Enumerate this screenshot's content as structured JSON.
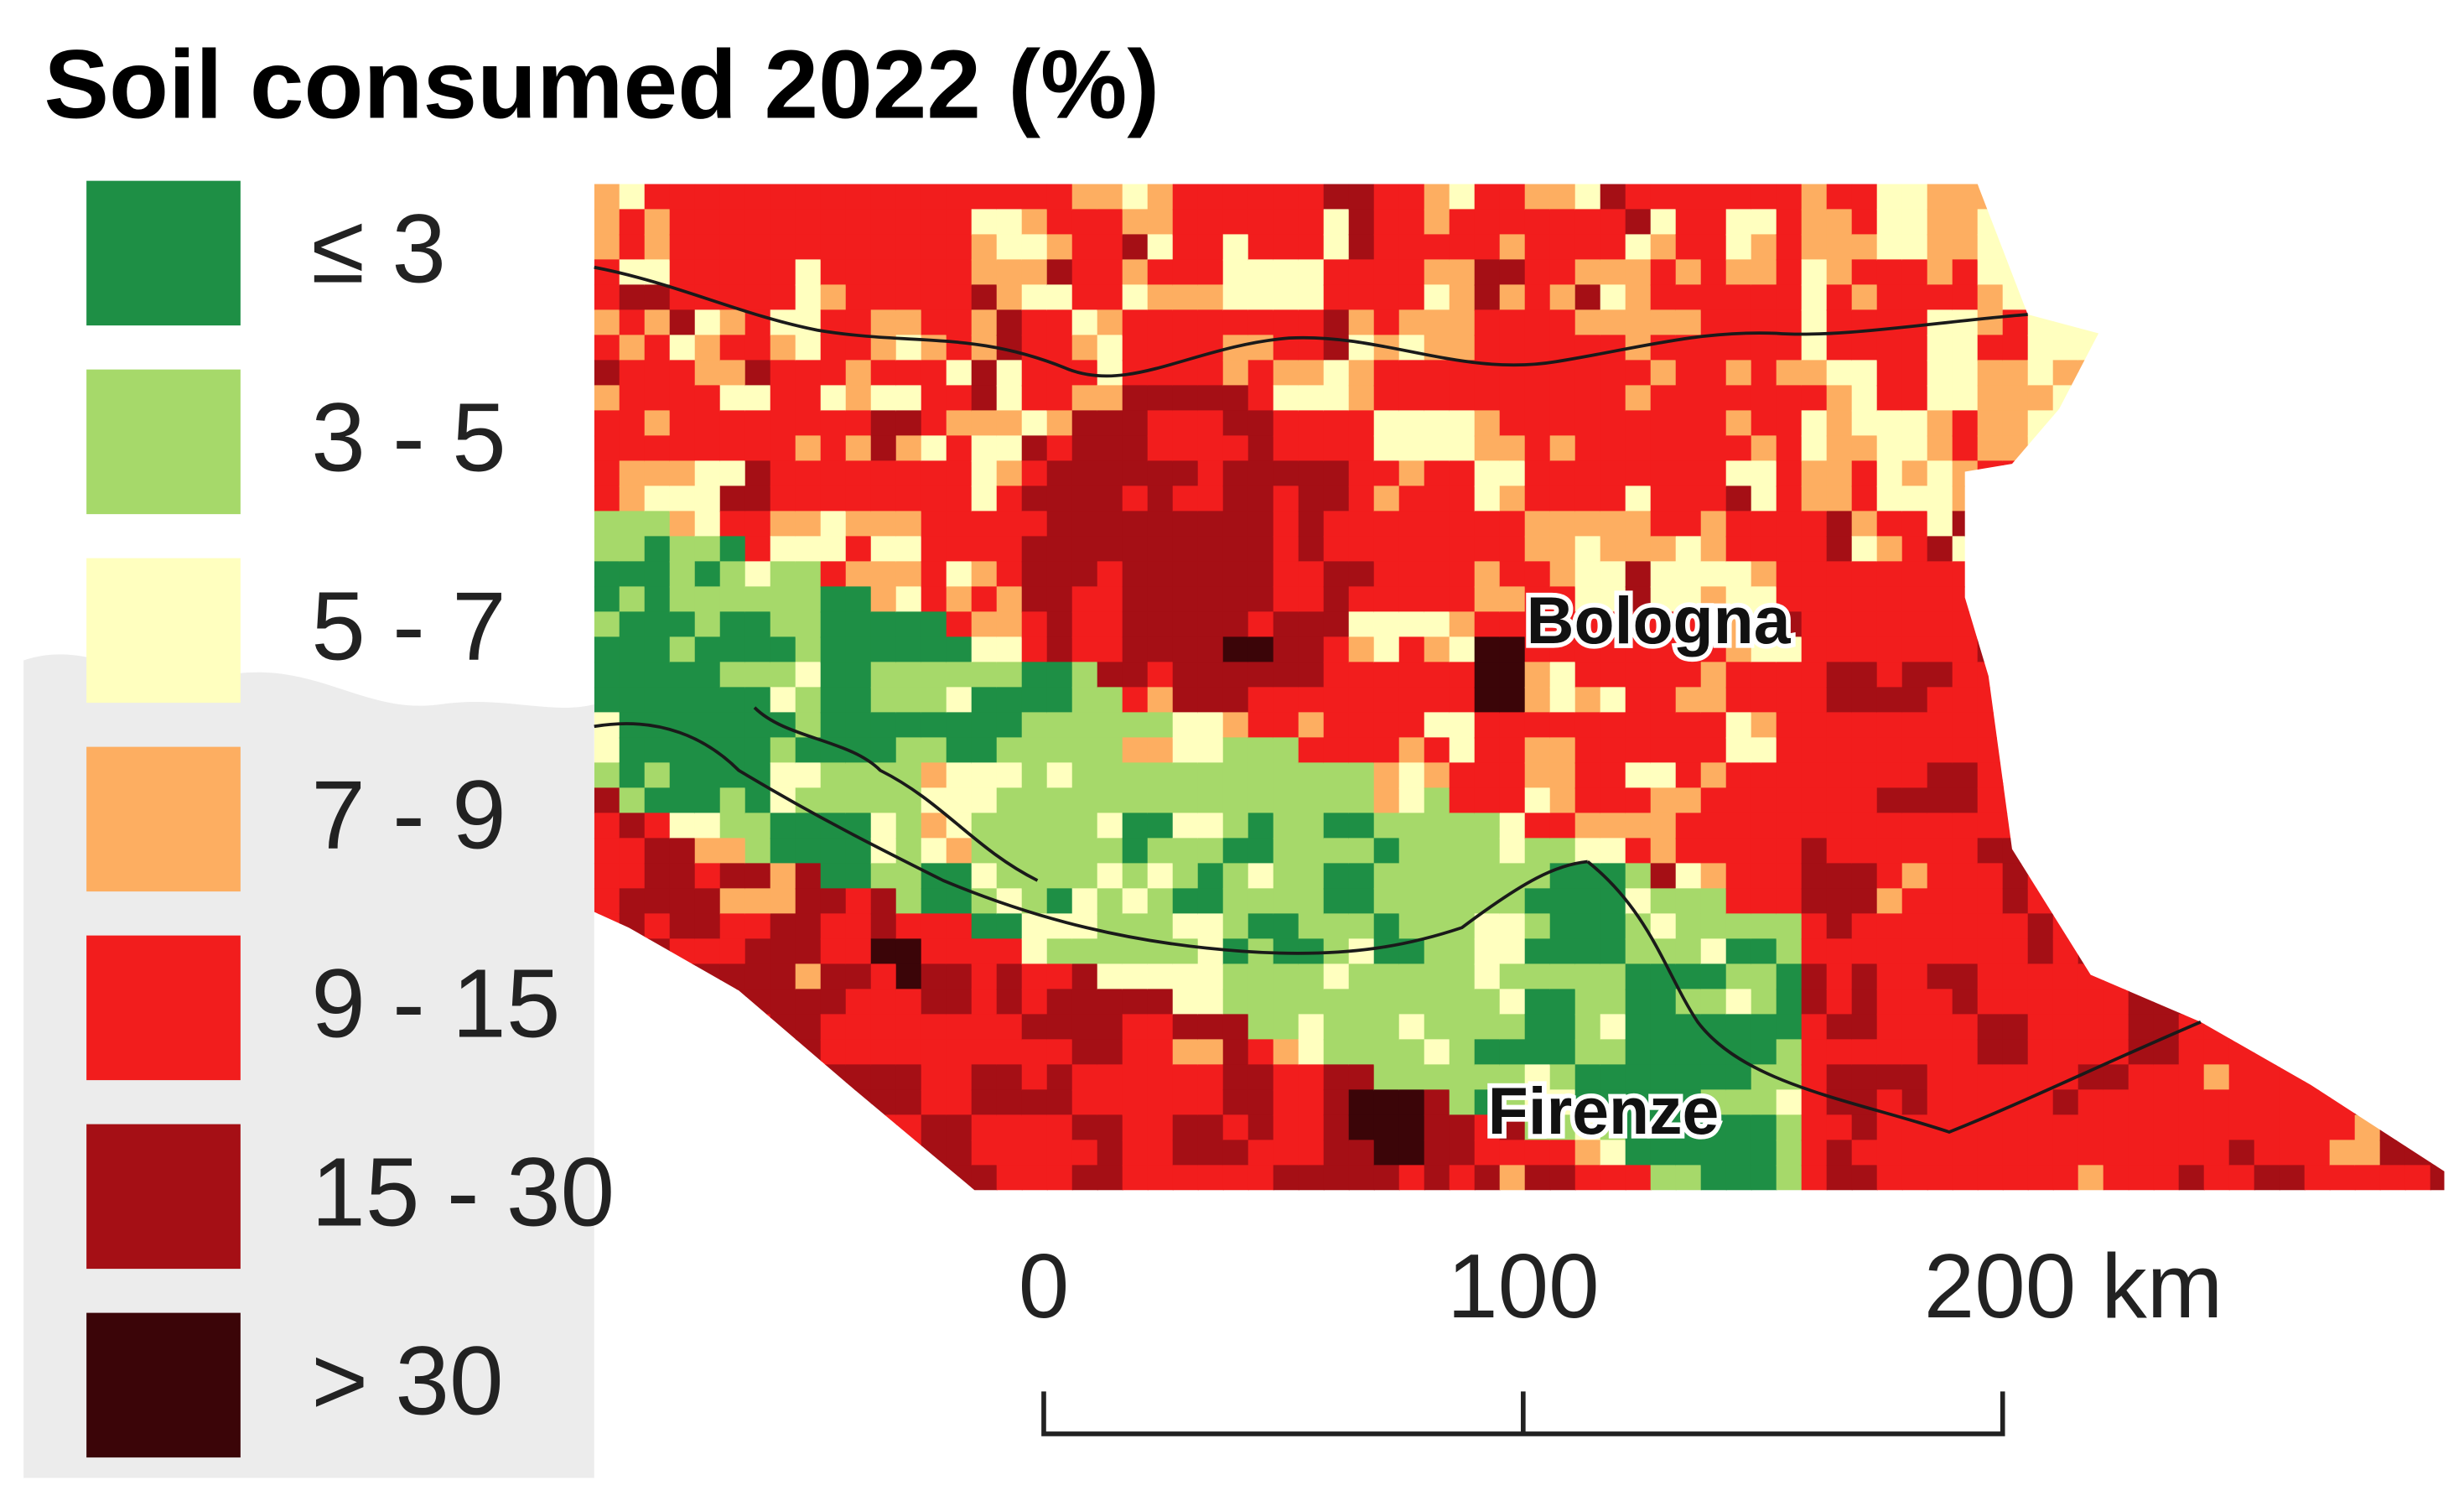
{
  "title": "Soil consumed 2022 (%)",
  "legend": [
    {
      "label": "≤ 3",
      "color": "#1e8f45"
    },
    {
      "label": "3 - 5",
      "color": "#a6d96a"
    },
    {
      "label": "5 - 7",
      "color": "#ffffbf"
    },
    {
      "label": "7 - 9",
      "color": "#fdae61"
    },
    {
      "label": "9 - 15",
      "color": "#f21d1d"
    },
    {
      "label": "15 - 30",
      "color": "#a50f15"
    },
    {
      "label": "> 30",
      "color": "#3b0508"
    }
  ],
  "cities": [
    "Bologna",
    "Firenze"
  ],
  "scale_bar": [
    "0",
    "100",
    "200 km"
  ]
}
